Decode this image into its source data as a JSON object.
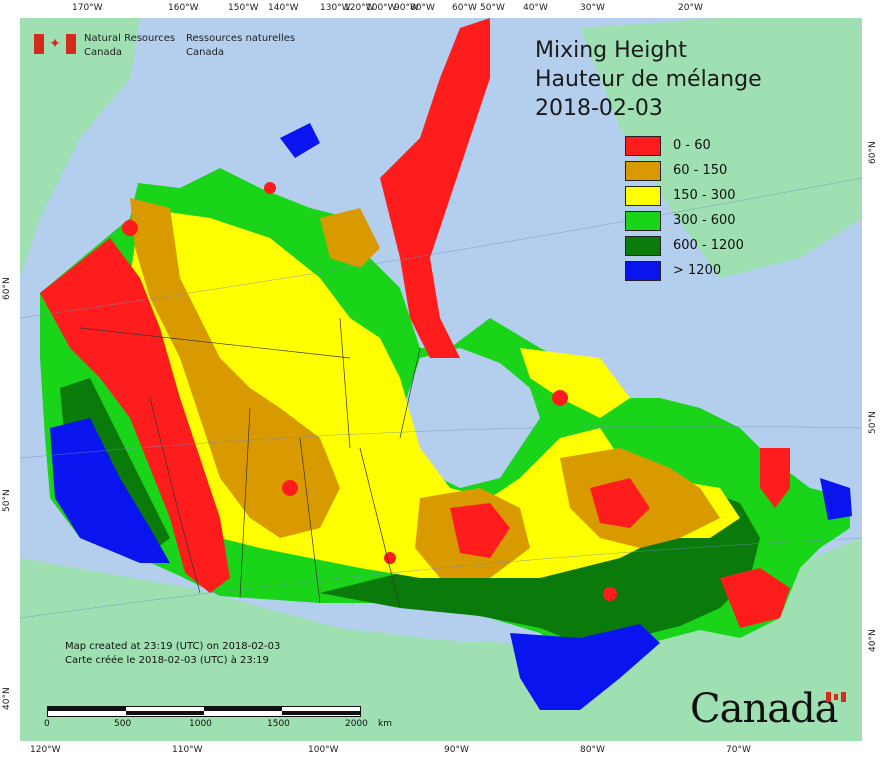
{
  "agency": {
    "name_en_line1": "Natural Resources",
    "name_en_line2": "Canada",
    "name_fr_line1": "Ressources naturelles",
    "name_fr_line2": "Canada"
  },
  "title": {
    "line1": "Mixing Height",
    "line2": "Hauteur de mélange",
    "date": "2018-02-03"
  },
  "legend": [
    {
      "label": "0 - 60",
      "color": "#ff1c1c"
    },
    {
      "label": "60 - 150",
      "color": "#d99a00"
    },
    {
      "label": "150 - 300",
      "color": "#ffff00"
    },
    {
      "label": "300 - 600",
      "color": "#19d419"
    },
    {
      "label": "600 - 1200",
      "color": "#0a7a0a"
    },
    {
      "label": "> 1200",
      "color": "#0a14ee"
    }
  ],
  "colors": {
    "water": "#b4cfee",
    "land_outside": "#9ee0b2"
  },
  "longitude_top": [
    "170°W",
    "160°W",
    "150°W",
    "140°W",
    "130°W",
    "120°W",
    "100°W",
    "90°W",
    "80°W",
    "60°W",
    "50°W",
    "40°W",
    "30°W",
    "20°W"
  ],
  "longitude_bottom": [
    "120°W",
    "110°W",
    "100°W",
    "90°W",
    "80°W",
    "70°W"
  ],
  "latitude_left": [
    "60°N",
    "50°N",
    "40°N"
  ],
  "latitude_right": [
    "60°N",
    "50°N",
    "40°N"
  ],
  "created": {
    "en": "Map created at 23:19 (UTC) on 2018-02-03",
    "fr": "Carte créée le 2018-02-03 (UTC) à 23:19"
  },
  "scale": {
    "ticks": [
      "0",
      "500",
      "1000",
      "1500",
      "2000"
    ],
    "unit": "km"
  },
  "wordmark": "Canada"
}
